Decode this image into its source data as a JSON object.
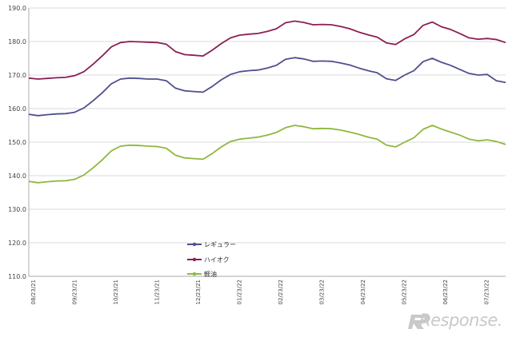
{
  "chart_data": {
    "type": "line",
    "ylim": [
      110.0,
      190.0
    ],
    "yticks": [
      "110.0",
      "120.0",
      "130.0",
      "140.0",
      "150.0",
      "160.0",
      "170.0",
      "180.0",
      "190.0"
    ],
    "xticks": [
      "08/23/21",
      "09/23/21",
      "10/23/21",
      "11/23/21",
      "12/23/21",
      "01/23/22",
      "02/23/22",
      "03/23/22",
      "04/23/22",
      "05/23/22",
      "06/23/22",
      "07/23/22"
    ],
    "grid": "horizontal",
    "legend_position": "center-left",
    "series": [
      {
        "name": "レギュラー",
        "color": "#4f4f8f",
        "values": [
          158.3,
          157.9,
          158.2,
          158.4,
          158.5,
          158.9,
          160.2,
          162.3,
          164.7,
          167.4,
          168.8,
          169.1,
          169.0,
          168.8,
          168.8,
          168.3,
          166.1,
          165.3,
          165.1,
          164.9,
          166.6,
          168.6,
          170.2,
          171.0,
          171.3,
          171.5,
          172.1,
          172.9,
          174.7,
          175.2,
          174.8,
          174.1,
          174.2,
          174.1,
          173.6,
          173.0,
          172.1,
          171.3,
          170.7,
          168.9,
          168.4,
          170.0,
          171.3,
          174.0,
          175.0,
          173.8,
          172.9,
          171.7,
          170.5,
          170.0,
          170.2,
          168.3,
          167.8
        ]
      },
      {
        "name": "ハイオク",
        "color": "#8b1f55",
        "values": [
          169.1,
          168.8,
          169.0,
          169.2,
          169.3,
          169.8,
          171.0,
          173.2,
          175.7,
          178.4,
          179.7,
          180.0,
          179.9,
          179.8,
          179.7,
          179.2,
          177.0,
          176.1,
          175.9,
          175.7,
          177.4,
          179.4,
          181.1,
          181.9,
          182.2,
          182.4,
          183.0,
          183.8,
          185.6,
          186.1,
          185.7,
          185.0,
          185.1,
          185.0,
          184.5,
          183.8,
          182.8,
          182.0,
          181.3,
          179.6,
          179.1,
          180.8,
          182.1,
          184.8,
          185.8,
          184.4,
          183.6,
          182.4,
          181.1,
          180.7,
          180.9,
          180.6,
          179.7
        ]
      },
      {
        "name": "軽油",
        "color": "#8fb840",
        "values": [
          138.3,
          137.9,
          138.2,
          138.4,
          138.5,
          138.9,
          140.2,
          142.3,
          144.7,
          147.4,
          148.8,
          149.1,
          149.0,
          148.8,
          148.7,
          148.2,
          146.1,
          145.3,
          145.1,
          144.9,
          146.6,
          148.6,
          150.2,
          150.9,
          151.2,
          151.5,
          152.1,
          152.9,
          154.3,
          155.0,
          154.6,
          154.0,
          154.1,
          154.0,
          153.6,
          153.0,
          152.3,
          151.5,
          150.9,
          149.1,
          148.6,
          150.0,
          151.3,
          153.8,
          155.0,
          153.9,
          153.0,
          152.1,
          150.9,
          150.4,
          150.7,
          150.2,
          149.3
        ]
      }
    ]
  },
  "watermark": {
    "text": "Response."
  }
}
